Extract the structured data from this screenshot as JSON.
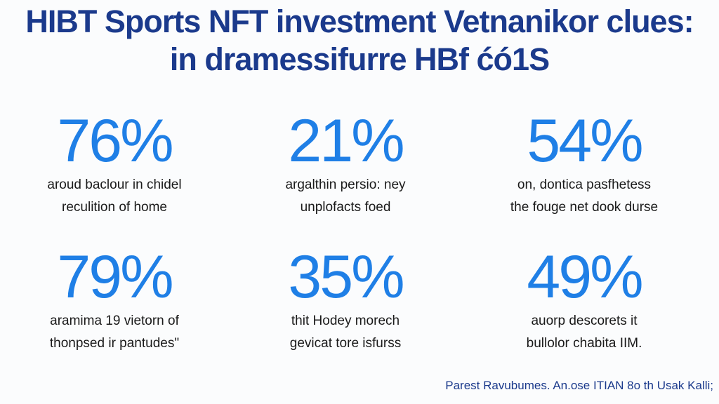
{
  "title": {
    "line1": "HIBT Sports NFT investment Vetnanikor clues:",
    "line2": "in dramessifurre HBf ćó1S"
  },
  "stats": [
    {
      "value": "76%",
      "line1": "aroud baclour in chidel",
      "line2": "reculition of home"
    },
    {
      "value": "21%",
      "line1": "argalthin persio: ney",
      "line2": "unplofacts foed"
    },
    {
      "value": "54%",
      "line1": "on, dontica pasfhetess",
      "line2": "the fouge net dook durse"
    },
    {
      "value": "79%",
      "line1": "aramima 19 vietorn of",
      "line2": "thonpsed ir pantudes\""
    },
    {
      "value": "35%",
      "line1": "thit Hodey morech",
      "line2": "gevicat tore isfurss"
    },
    {
      "value": "49%",
      "line1": "auorp descorets it",
      "line2": "bullolor chabita IIM."
    }
  ],
  "footer": "Parest Ravubumes. An.ose ITIAN 8o th Usak Kalli;",
  "colors": {
    "title": "#1b3a8c",
    "stat_value": "#1f7fe6",
    "text": "#1a1a1a",
    "background": "#fbfcfd"
  }
}
